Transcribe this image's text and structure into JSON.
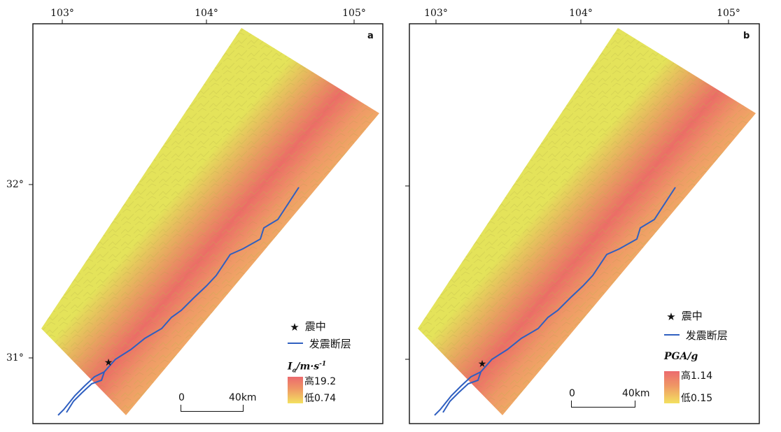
{
  "map": {
    "lon_ticks": [
      "103°",
      "104°",
      "105°"
    ],
    "lat_ticks": [
      "32°",
      "31°"
    ],
    "colors": {
      "high": "#e8525c",
      "mid": "#ef8a60",
      "low": "#f0d95a",
      "background_terrain": "#cfcb4c",
      "fault": "#2f5fc0",
      "frame": "#111111"
    },
    "panels": [
      {
        "id": "a",
        "letter": "a",
        "legend": {
          "epicenter_label": "震中",
          "fault_label": "发震断层",
          "param_symbol": "I",
          "param_sub": "a",
          "param_unit": "/m·s",
          "param_unit_sup": "-1",
          "high_label": "高19.2",
          "low_label": "低0.74"
        },
        "scale": {
          "zero": "0",
          "dist": "40km"
        }
      },
      {
        "id": "b",
        "letter": "b",
        "legend": {
          "epicenter_label": "震中",
          "fault_label": "发震断层",
          "param_symbol": "PGA",
          "param_unit": "/g",
          "high_label": "高1.14",
          "low_label": "低0.15"
        },
        "scale": {
          "zero": "0",
          "dist": "40km"
        }
      }
    ]
  }
}
